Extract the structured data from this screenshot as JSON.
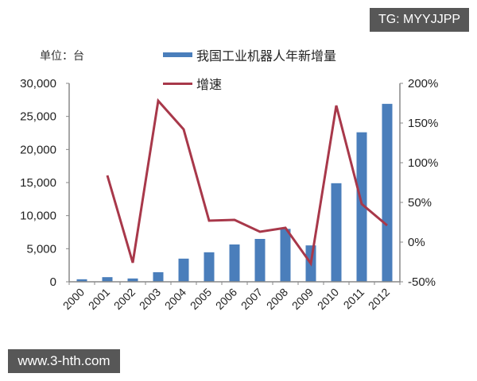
{
  "watermarks": {
    "top": "TG: MYYJJPP",
    "bottom": "www.3-hth.com"
  },
  "unit_label": "单位：台",
  "colors": {
    "bar": "#4a7ebb",
    "line": "#a8384a",
    "axis": "#888888",
    "text": "#222222"
  },
  "chart_data": {
    "type": "bar+line",
    "title": "",
    "unit": "单位：台",
    "categories": [
      "2000",
      "2001",
      "2002",
      "2003",
      "2004",
      "2005",
      "2006",
      "2007",
      "2008",
      "2009",
      "2010",
      "2011",
      "2012"
    ],
    "series": [
      {
        "name": "我国工业机器人年新增量",
        "type": "bar",
        "axis": "left",
        "values": [
          380,
          700,
          500,
          1450,
          3500,
          4460,
          5640,
          6480,
          8000,
          5500,
          14900,
          22600,
          26900
        ]
      },
      {
        "name": "增速",
        "type": "line",
        "axis": "right",
        "values": [
          null,
          84,
          -26,
          178,
          142,
          27,
          28,
          13,
          18,
          -27,
          172,
          48,
          21
        ]
      }
    ],
    "left_axis": {
      "ylim": [
        0,
        30000
      ],
      "ticks": [
        "0",
        "5,000",
        "10,000",
        "15,000",
        "20,000",
        "25,000",
        "30,000"
      ],
      "tick_values": [
        0,
        5000,
        10000,
        15000,
        20000,
        25000,
        30000
      ]
    },
    "right_axis": {
      "ylim": [
        -50,
        200
      ],
      "ticks": [
        "-50%",
        "0%",
        "50%",
        "100%",
        "150%",
        "200%"
      ],
      "tick_values": [
        -50,
        0,
        50,
        100,
        150,
        200
      ]
    },
    "xlabel": "",
    "ylabel": "",
    "grid": false,
    "legend_position": "top"
  }
}
